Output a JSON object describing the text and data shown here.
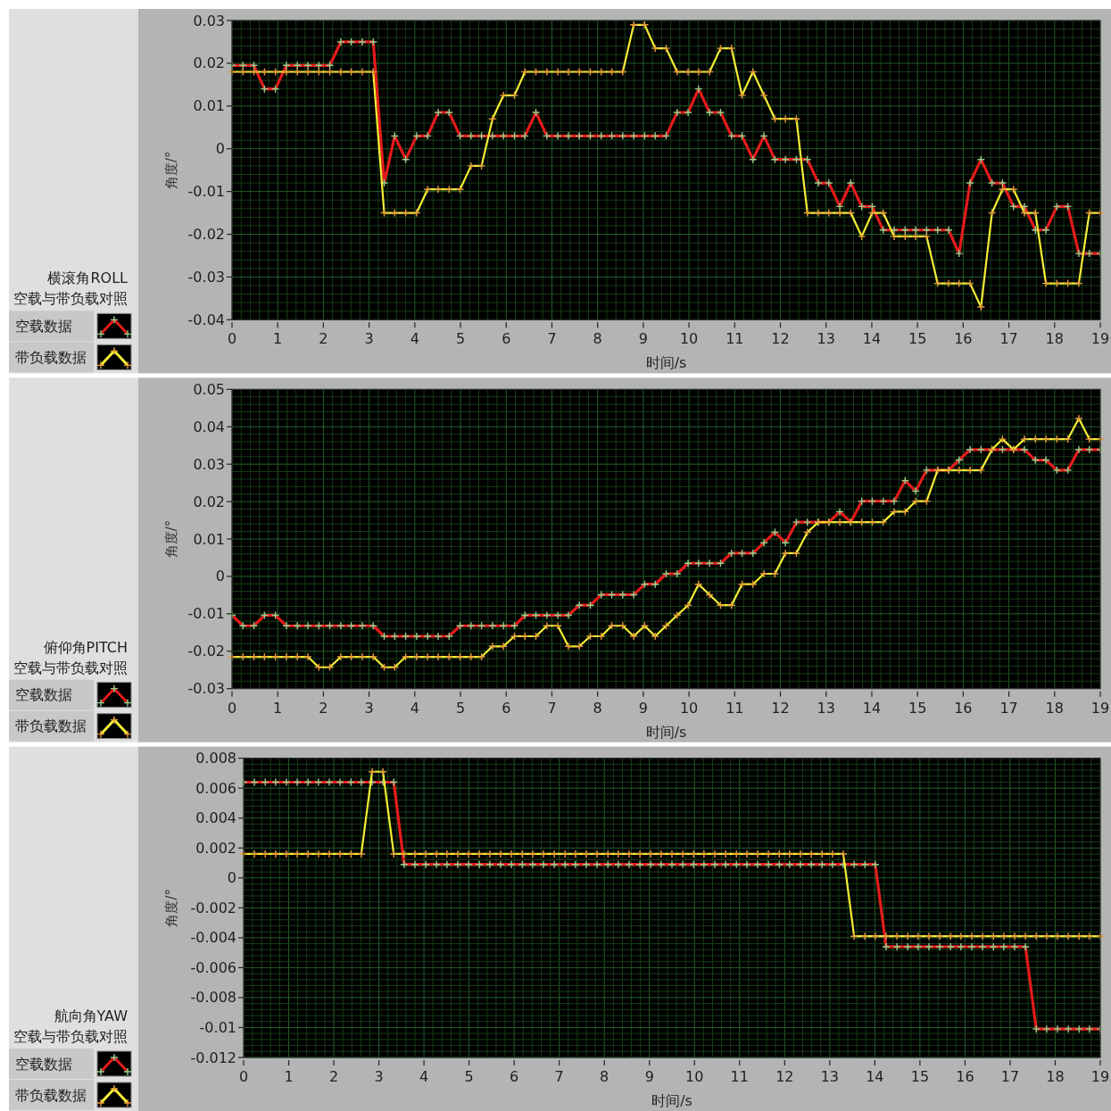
{
  "chart_data": [
    {
      "type": "line",
      "title": "横滚角ROLL",
      "subtitle": "空载与带负载对照",
      "xlabel": "时间/s",
      "ylabel": "角度/°",
      "x": [
        0,
        0.24,
        0.48,
        0.71,
        0.95,
        1.19,
        1.43,
        1.66,
        1.9,
        2.14,
        2.38,
        2.61,
        2.85,
        3.09,
        3.33,
        3.56,
        3.8,
        4.04,
        4.28,
        4.51,
        4.75,
        4.99,
        5.23,
        5.46,
        5.7,
        5.94,
        6.18,
        6.41,
        6.65,
        6.89,
        7.13,
        7.36,
        7.6,
        7.84,
        8.08,
        8.31,
        8.55,
        8.79,
        9.03,
        9.26,
        9.5,
        9.74,
        9.98,
        10.21,
        10.45,
        10.69,
        10.93,
        11.16,
        11.4,
        11.64,
        11.88,
        12.11,
        12.35,
        12.59,
        12.83,
        13.06,
        13.3,
        13.54,
        13.78,
        14.01,
        14.25,
        14.49,
        14.73,
        14.96,
        15.2,
        15.44,
        15.68,
        15.91,
        16.15,
        16.39,
        16.63,
        16.86,
        17.1,
        17.34,
        17.58,
        17.81,
        18.05,
        18.29,
        18.53,
        18.76,
        19
      ],
      "xlim": [
        0,
        19
      ],
      "xticks": [
        0,
        1,
        2,
        3,
        4,
        5,
        6,
        7,
        8,
        9,
        10,
        11,
        12,
        13,
        14,
        15,
        16,
        17,
        18,
        19
      ],
      "ylim": [
        -0.04,
        0.03
      ],
      "yticks": [
        -0.04,
        -0.03,
        -0.02,
        -0.01,
        0,
        0.01,
        0.02,
        0.03
      ],
      "grid": true,
      "legend": "left",
      "marker": "cross",
      "line_style": "solid",
      "series": [
        {
          "name": "空载数据",
          "color": "#e41b1b",
          "values": [
            0.0195,
            0.0195,
            0.0195,
            0.014,
            0.014,
            0.0195,
            0.0195,
            0.0195,
            0.0195,
            0.0195,
            0.025,
            0.025,
            0.025,
            0.025,
            -0.008,
            0.003,
            -0.0025,
            0.003,
            0.003,
            0.0085,
            0.0085,
            0.003,
            0.003,
            0.003,
            0.003,
            0.003,
            0.003,
            0.003,
            0.0085,
            0.003,
            0.003,
            0.003,
            0.003,
            0.003,
            0.003,
            0.003,
            0.003,
            0.003,
            0.003,
            0.003,
            0.003,
            0.0085,
            0.0085,
            0.014,
            0.0085,
            0.0085,
            0.003,
            0.003,
            -0.0025,
            0.003,
            -0.0025,
            -0.0025,
            -0.0025,
            -0.0025,
            -0.008,
            -0.008,
            -0.0135,
            -0.008,
            -0.0135,
            -0.0135,
            -0.019,
            -0.019,
            -0.019,
            -0.019,
            -0.019,
            -0.019,
            -0.019,
            -0.0245,
            -0.008,
            -0.0025,
            -0.008,
            -0.008,
            -0.0135,
            -0.0135,
            -0.019,
            -0.019,
            -0.0135,
            -0.0135,
            -0.0245,
            -0.0245,
            -0.0245
          ]
        },
        {
          "name": "带负载数据",
          "color": "#f4ef35",
          "values": [
            0.018,
            0.018,
            0.018,
            0.018,
            0.018,
            0.018,
            0.018,
            0.018,
            0.018,
            0.018,
            0.018,
            0.018,
            0.018,
            0.018,
            -0.015,
            -0.015,
            -0.015,
            -0.015,
            -0.0095,
            -0.0095,
            -0.0095,
            -0.0095,
            -0.004,
            -0.004,
            0.007,
            0.0125,
            0.0125,
            0.018,
            0.018,
            0.018,
            0.018,
            0.018,
            0.018,
            0.018,
            0.018,
            0.018,
            0.018,
            0.029,
            0.029,
            0.0235,
            0.0235,
            0.018,
            0.018,
            0.018,
            0.018,
            0.0235,
            0.0235,
            0.0125,
            0.018,
            0.0125,
            0.007,
            0.007,
            0.007,
            -0.015,
            -0.015,
            -0.015,
            -0.015,
            -0.015,
            -0.0205,
            -0.015,
            -0.015,
            -0.0205,
            -0.0205,
            -0.0205,
            -0.0205,
            -0.0315,
            -0.0315,
            -0.0315,
            -0.0315,
            -0.037,
            -0.015,
            -0.0095,
            -0.0095,
            -0.015,
            -0.015,
            -0.0315,
            -0.0315,
            -0.0315,
            -0.0315,
            -0.015,
            -0.015
          ]
        }
      ]
    },
    {
      "type": "line",
      "title": "俯仰角PITCH",
      "subtitle": "空载与带负载对照",
      "xlabel": "时间/s",
      "ylabel": "角度/°",
      "x": [
        0,
        0.24,
        0.48,
        0.71,
        0.95,
        1.19,
        1.43,
        1.66,
        1.9,
        2.14,
        2.38,
        2.61,
        2.85,
        3.09,
        3.33,
        3.56,
        3.8,
        4.04,
        4.28,
        4.51,
        4.75,
        4.99,
        5.23,
        5.46,
        5.7,
        5.94,
        6.18,
        6.41,
        6.65,
        6.89,
        7.13,
        7.36,
        7.6,
        7.84,
        8.08,
        8.31,
        8.55,
        8.79,
        9.03,
        9.26,
        9.5,
        9.74,
        9.98,
        10.21,
        10.45,
        10.69,
        10.93,
        11.16,
        11.4,
        11.64,
        11.88,
        12.11,
        12.35,
        12.59,
        12.83,
        13.06,
        13.3,
        13.54,
        13.78,
        14.01,
        14.25,
        14.49,
        14.73,
        14.96,
        15.2,
        15.44,
        15.68,
        15.91,
        16.15,
        16.39,
        16.63,
        16.86,
        17.1,
        17.34,
        17.58,
        17.81,
        18.05,
        18.29,
        18.53,
        18.76,
        19
      ],
      "xlim": [
        0,
        19
      ],
      "xticks": [
        0,
        1,
        2,
        3,
        4,
        5,
        6,
        7,
        8,
        9,
        10,
        11,
        12,
        13,
        14,
        15,
        16,
        17,
        18,
        19
      ],
      "ylim": [
        -0.03,
        0.05
      ],
      "yticks": [
        -0.03,
        -0.02,
        -0.01,
        0,
        0.01,
        0.02,
        0.03,
        0.04,
        0.05
      ],
      "grid": true,
      "legend": "left",
      "marker": "cross",
      "line_style": "solid",
      "series": [
        {
          "name": "空载数据",
          "color": "#e41b1b",
          "values": [
            -0.0104,
            -0.0132,
            -0.0132,
            -0.0104,
            -0.0104,
            -0.0132,
            -0.0132,
            -0.0132,
            -0.0132,
            -0.0132,
            -0.0132,
            -0.0132,
            -0.0132,
            -0.0132,
            -0.016,
            -0.016,
            -0.016,
            -0.016,
            -0.016,
            -0.016,
            -0.016,
            -0.0132,
            -0.0132,
            -0.0132,
            -0.0132,
            -0.0132,
            -0.0132,
            -0.0104,
            -0.0104,
            -0.0104,
            -0.0104,
            -0.0104,
            -0.0077,
            -0.0077,
            -0.0049,
            -0.0049,
            -0.0049,
            -0.0049,
            -0.0021,
            -0.0021,
            0.0007,
            0.0007,
            0.0035,
            0.0035,
            0.0035,
            0.0035,
            0.0062,
            0.0062,
            0.0062,
            0.009,
            0.0118,
            0.009,
            0.0145,
            0.0145,
            0.0145,
            0.0145,
            0.0173,
            0.0145,
            0.0201,
            0.0201,
            0.0201,
            0.0201,
            0.0256,
            0.0228,
            0.0284,
            0.0284,
            0.0284,
            0.0311,
            0.0339,
            0.0339,
            0.0339,
            0.0339,
            0.0339,
            0.0339,
            0.0311,
            0.0311,
            0.0284,
            0.0284,
            0.0339,
            0.0339,
            0.0339
          ]
        },
        {
          "name": "带负载数据",
          "color": "#f4ef35",
          "values": [
            -0.0215,
            -0.0215,
            -0.0215,
            -0.0215,
            -0.0215,
            -0.0215,
            -0.0215,
            -0.0215,
            -0.0243,
            -0.0243,
            -0.0215,
            -0.0215,
            -0.0215,
            -0.0215,
            -0.0243,
            -0.0243,
            -0.0215,
            -0.0215,
            -0.0215,
            -0.0215,
            -0.0215,
            -0.0215,
            -0.0215,
            -0.0215,
            -0.0187,
            -0.0187,
            -0.016,
            -0.016,
            -0.016,
            -0.0132,
            -0.0132,
            -0.0187,
            -0.0187,
            -0.016,
            -0.016,
            -0.0132,
            -0.0132,
            -0.016,
            -0.0132,
            -0.016,
            -0.0132,
            -0.0104,
            -0.0077,
            -0.0021,
            -0.0049,
            -0.0077,
            -0.0077,
            -0.0021,
            -0.0021,
            0.0007,
            0.0007,
            0.0062,
            0.0062,
            0.0118,
            0.0145,
            0.0145,
            0.0145,
            0.0145,
            0.0145,
            0.0145,
            0.0145,
            0.0173,
            0.0173,
            0.0201,
            0.0201,
            0.0284,
            0.0284,
            0.0284,
            0.0284,
            0.0284,
            0.0339,
            0.0367,
            0.0339,
            0.0367,
            0.0367,
            0.0367,
            0.0367,
            0.0367,
            0.0422,
            0.0367,
            0.0367
          ]
        }
      ]
    },
    {
      "type": "line",
      "title": "航向角YAW",
      "subtitle": "空载与带负载对照",
      "xlabel": "时间/s",
      "ylabel": "角度/°",
      "x": [
        0,
        0.24,
        0.48,
        0.71,
        0.95,
        1.19,
        1.43,
        1.66,
        1.9,
        2.14,
        2.38,
        2.61,
        2.85,
        3.09,
        3.33,
        3.56,
        3.8,
        4.04,
        4.28,
        4.51,
        4.75,
        4.99,
        5.23,
        5.46,
        5.7,
        5.94,
        6.18,
        6.41,
        6.65,
        6.89,
        7.13,
        7.36,
        7.6,
        7.84,
        8.08,
        8.31,
        8.55,
        8.79,
        9.03,
        9.26,
        9.5,
        9.74,
        9.98,
        10.21,
        10.45,
        10.69,
        10.93,
        11.16,
        11.4,
        11.64,
        11.88,
        12.11,
        12.35,
        12.59,
        12.83,
        13.06,
        13.3,
        13.54,
        13.78,
        14.01,
        14.25,
        14.49,
        14.73,
        14.96,
        15.2,
        15.44,
        15.68,
        15.91,
        16.15,
        16.39,
        16.63,
        16.86,
        17.1,
        17.34,
        17.58,
        17.81,
        18.05,
        18.29,
        18.53,
        18.76,
        19
      ],
      "xlim": [
        0,
        19
      ],
      "xticks": [
        0,
        1,
        2,
        3,
        4,
        5,
        6,
        7,
        8,
        9,
        10,
        11,
        12,
        13,
        14,
        15,
        16,
        17,
        18,
        19
      ],
      "ylim": [
        -0.012,
        0.008
      ],
      "yticks": [
        -0.012,
        -0.01,
        -0.008,
        -0.006,
        -0.004,
        -0.002,
        0,
        0.002,
        0.004,
        0.006,
        0.008
      ],
      "grid": true,
      "legend": "left",
      "marker": "cross",
      "line_style": "solid",
      "series": [
        {
          "name": "空载数据",
          "color": "#e41b1b",
          "values": [
            0.0064,
            0.0064,
            0.0064,
            0.0064,
            0.0064,
            0.0064,
            0.0064,
            0.0064,
            0.0064,
            0.0064,
            0.0064,
            0.0064,
            0.0064,
            0.0064,
            0.0064,
            0.0009,
            0.0009,
            0.0009,
            0.0009,
            0.0009,
            0.0009,
            0.0009,
            0.0009,
            0.0009,
            0.0009,
            0.0009,
            0.0009,
            0.0009,
            0.0009,
            0.0009,
            0.0009,
            0.0009,
            0.0009,
            0.0009,
            0.0009,
            0.0009,
            0.0009,
            0.0009,
            0.0009,
            0.0009,
            0.0009,
            0.0009,
            0.0009,
            0.0009,
            0.0009,
            0.0009,
            0.0009,
            0.0009,
            0.0009,
            0.0009,
            0.0009,
            0.0009,
            0.0009,
            0.0009,
            0.0009,
            0.0009,
            0.0009,
            0.0009,
            0.0009,
            0.0009,
            -0.0046,
            -0.0046,
            -0.0046,
            -0.0046,
            -0.0046,
            -0.0046,
            -0.0046,
            -0.0046,
            -0.0046,
            -0.0046,
            -0.0046,
            -0.0046,
            -0.0046,
            -0.0046,
            -0.0101,
            -0.0101,
            -0.0101,
            -0.0101,
            -0.0101,
            -0.0101,
            -0.0101
          ]
        },
        {
          "name": "带负载数据",
          "color": "#f4ef35",
          "values": [
            0.0016,
            0.0016,
            0.0016,
            0.0016,
            0.0016,
            0.0016,
            0.0016,
            0.0016,
            0.0016,
            0.0016,
            0.0016,
            0.0016,
            0.0071,
            0.0071,
            0.0016,
            0.0016,
            0.0016,
            0.0016,
            0.0016,
            0.0016,
            0.0016,
            0.0016,
            0.0016,
            0.0016,
            0.0016,
            0.0016,
            0.0016,
            0.0016,
            0.0016,
            0.0016,
            0.0016,
            0.0016,
            0.0016,
            0.0016,
            0.0016,
            0.0016,
            0.0016,
            0.0016,
            0.0016,
            0.0016,
            0.0016,
            0.0016,
            0.0016,
            0.0016,
            0.0016,
            0.0016,
            0.0016,
            0.0016,
            0.0016,
            0.0016,
            0.0016,
            0.0016,
            0.0016,
            0.0016,
            0.0016,
            0.0016,
            0.0016,
            -0.0039,
            -0.0039,
            -0.0039,
            -0.0039,
            -0.0039,
            -0.0039,
            -0.0039,
            -0.0039,
            -0.0039,
            -0.0039,
            -0.0039,
            -0.0039,
            -0.0039,
            -0.0039,
            -0.0039,
            -0.0039,
            -0.0039,
            -0.0039,
            -0.0039,
            -0.0039,
            -0.0039,
            -0.0039,
            -0.0039,
            -0.0039
          ]
        }
      ]
    }
  ]
}
